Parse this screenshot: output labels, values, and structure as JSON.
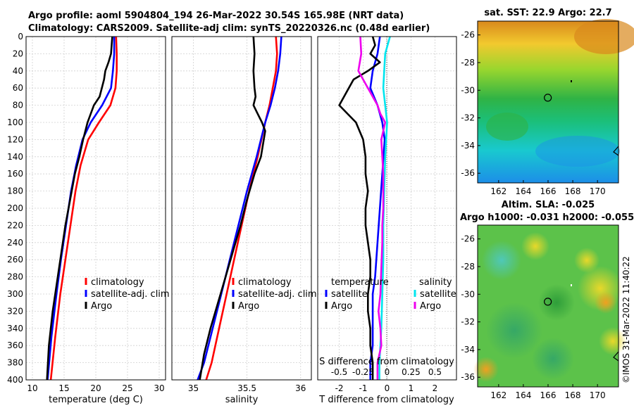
{
  "header": {
    "line1": "Argo profile: aoml 5904804_194 26-Mar-2022 30.54S 165.98E (NRT data)",
    "line2": "Climatology: CARS2009. Satellite-adj clim: synTS_20220326.nc (0.48d earlier)"
  },
  "colors": {
    "climatology": "#ff0000",
    "satellite": "#0000ff",
    "argo": "#000000",
    "salinity_sat": "#00e5ee",
    "salinity_argo": "#ee00ee"
  },
  "chart_data": [
    {
      "type": "line",
      "id": "temperature",
      "xlabel": "temperature (deg C)",
      "ylabel": "",
      "xlim": [
        9,
        31
      ],
      "ylim": [
        400,
        0
      ],
      "xticks": [
        "10",
        "15",
        "20",
        "25",
        "30"
      ],
      "yticks": [
        "0",
        "20",
        "40",
        "60",
        "80",
        "100",
        "120",
        "140",
        "160",
        "180",
        "200",
        "220",
        "240",
        "260",
        "280",
        "300",
        "320",
        "340",
        "360",
        "380",
        "400"
      ],
      "legend": [
        "climatology",
        "satellite-adj. clim",
        "Argo"
      ],
      "series": [
        {
          "name": "climatology",
          "color": "#ff0000",
          "x": [
            23.2,
            23.3,
            23.3,
            23.1,
            22.3,
            20.5,
            18.8,
            17.6,
            16.8,
            16.0,
            15.2,
            14.4,
            13.6,
            12.9
          ],
          "y": [
            0,
            20,
            40,
            60,
            80,
            100,
            120,
            150,
            180,
            220,
            260,
            300,
            350,
            400
          ]
        },
        {
          "name": "satellite-adj. clim",
          "color": "#0000ff",
          "x": [
            22.9,
            22.9,
            22.7,
            22.4,
            21.0,
            19.2,
            17.9,
            16.9,
            16.1,
            15.3,
            14.5,
            13.8,
            13.0,
            12.4
          ],
          "y": [
            0,
            20,
            40,
            60,
            80,
            100,
            120,
            150,
            180,
            220,
            260,
            300,
            350,
            400
          ]
        },
        {
          "name": "Argo",
          "color": "#000000",
          "x": [
            22.6,
            22.5,
            22.4,
            22.0,
            21.5,
            21.3,
            20.6,
            19.7,
            18.7,
            18.0,
            17.4,
            16.7,
            16.2,
            15.7,
            15.2,
            14.8,
            14.4,
            14.0,
            13.6,
            13.2,
            12.9,
            12.6,
            12.3
          ],
          "y": [
            0,
            10,
            20,
            30,
            40,
            50,
            70,
            80,
            100,
            120,
            140,
            160,
            180,
            200,
            220,
            240,
            260,
            280,
            300,
            320,
            340,
            360,
            400
          ]
        }
      ]
    },
    {
      "type": "line",
      "id": "salinity",
      "xlabel": "salinity",
      "xlim": [
        34.8,
        36.1
      ],
      "ylim": [
        400,
        0
      ],
      "xticks": [
        "35",
        "35.5",
        "36"
      ],
      "legend": [
        "climatology",
        "satellite-adj. clim",
        "Argo"
      ],
      "series": [
        {
          "name": "climatology",
          "color": "#ff0000",
          "x": [
            35.77,
            35.78,
            35.77,
            35.74,
            35.71,
            35.67,
            35.6,
            35.52,
            35.45,
            35.38,
            35.31,
            35.24,
            35.17,
            35.12
          ],
          "y": [
            0,
            20,
            40,
            60,
            80,
            100,
            140,
            180,
            220,
            260,
            300,
            340,
            380,
            400
          ]
        },
        {
          "name": "satellite-adj. clim",
          "color": "#0000ff",
          "x": [
            35.82,
            35.81,
            35.79,
            35.76,
            35.72,
            35.67,
            35.59,
            35.5,
            35.42,
            35.34,
            35.26,
            35.18,
            35.1,
            35.04
          ],
          "y": [
            0,
            20,
            40,
            60,
            80,
            100,
            140,
            180,
            220,
            260,
            300,
            340,
            380,
            400
          ]
        },
        {
          "name": "Argo",
          "color": "#000000",
          "x": [
            35.56,
            35.57,
            35.56,
            35.57,
            35.58,
            35.56,
            35.6,
            35.64,
            35.67,
            35.63,
            35.57,
            35.5,
            35.44,
            35.37,
            35.3,
            35.23,
            35.16,
            35.1,
            35.06
          ],
          "y": [
            0,
            20,
            40,
            60,
            70,
            80,
            90,
            100,
            110,
            140,
            160,
            190,
            220,
            250,
            280,
            310,
            340,
            370,
            400
          ]
        }
      ]
    },
    {
      "type": "line",
      "id": "difference",
      "xlabel": "T difference from climatology",
      "xlabel_top": "S difference from climatology",
      "xlim": [
        -2.9,
        2.9
      ],
      "ylim": [
        400,
        0
      ],
      "xticks": [
        "-2",
        "-1",
        "0",
        "1",
        "2"
      ],
      "xticks_top": [
        "-0.5",
        "-0.25",
        "0",
        "0.25",
        "0.5"
      ],
      "legend_left": {
        "title": "temperature",
        "items": [
          "satellite",
          "Argo"
        ]
      },
      "legend_right": {
        "title": "salinity",
        "items": [
          "satellite",
          "Argo"
        ]
      },
      "series": [
        {
          "name": "temperature satellite",
          "color": "#0000ff",
          "x": [
            -0.3,
            -0.4,
            -0.6,
            -0.7,
            -0.4,
            -0.2,
            -0.1,
            -0.2,
            -0.3,
            -0.4,
            -0.5,
            -0.6,
            -0.6,
            -0.6,
            -0.7,
            -0.7
          ],
          "y": [
            0,
            20,
            40,
            60,
            80,
            100,
            120,
            160,
            200,
            240,
            280,
            300,
            330,
            360,
            380,
            400
          ]
        },
        {
          "name": "temperature Argo",
          "color": "#000000",
          "x": [
            -0.6,
            -0.5,
            -0.7,
            -0.3,
            -0.8,
            -1.4,
            -2.0,
            -1.3,
            -1.0,
            -0.9,
            -0.9,
            -0.8,
            -0.9,
            -0.9,
            -0.8,
            -0.7,
            -0.7,
            -0.8,
            -0.8,
            -0.7,
            -0.7,
            -0.6,
            -0.6
          ],
          "y": [
            0,
            10,
            20,
            30,
            40,
            50,
            80,
            100,
            120,
            140,
            160,
            180,
            200,
            220,
            240,
            260,
            280,
            300,
            320,
            340,
            360,
            380,
            400
          ]
        },
        {
          "name": "salinity satellite",
          "color": "#00e5ee",
          "x": [
            0.03,
            -0.02,
            -0.03,
            -0.04,
            -0.02,
            0.0,
            -0.02,
            -0.03,
            -0.04,
            -0.04,
            -0.05,
            -0.06,
            -0.08,
            -0.08
          ],
          "y": [
            0,
            20,
            40,
            60,
            80,
            100,
            140,
            180,
            220,
            260,
            300,
            340,
            380,
            400
          ]
        },
        {
          "name": "salinity Argo",
          "color": "#ee00ee",
          "x": [
            -0.28,
            -0.27,
            -0.3,
            -0.2,
            -0.1,
            -0.07,
            -0.02,
            -0.06,
            -0.04,
            -0.04,
            -0.05,
            -0.05,
            -0.06,
            -0.07,
            -0.09,
            -0.07,
            -0.06,
            -0.1,
            -0.1
          ],
          "y": [
            0,
            20,
            40,
            60,
            80,
            90,
            100,
            120,
            160,
            200,
            220,
            240,
            270,
            300,
            320,
            340,
            360,
            380,
            400
          ]
        }
      ]
    },
    {
      "type": "heatmap",
      "id": "sst_map",
      "title": "sat. SST: 22.9 Argo: 22.7",
      "xlim": [
        160.3,
        171.7
      ],
      "ylim": [
        -36.7,
        -25.0
      ],
      "xticks": [
        "162",
        "164",
        "166",
        "168",
        "170"
      ],
      "yticks": [
        "-26",
        "-28",
        "-30",
        "-32",
        "-34",
        "-36"
      ],
      "argo_position": [
        165.98,
        -30.54
      ]
    },
    {
      "type": "heatmap",
      "id": "sla_map",
      "title": "Altim. SLA: -0.025",
      "subtitle": "Argo h1000: -0.031 h2000: -0.055",
      "xlim": [
        160.3,
        171.7
      ],
      "ylim": [
        -36.7,
        -25.0
      ],
      "xticks": [
        "162",
        "164",
        "166",
        "168",
        "170"
      ],
      "yticks": [
        "-26",
        "-28",
        "-30",
        "-32",
        "-34",
        "-36"
      ],
      "argo_position": [
        165.98,
        -30.54
      ]
    }
  ],
  "watermark": "©IMOS 31-Mar-2022 11:40:22"
}
